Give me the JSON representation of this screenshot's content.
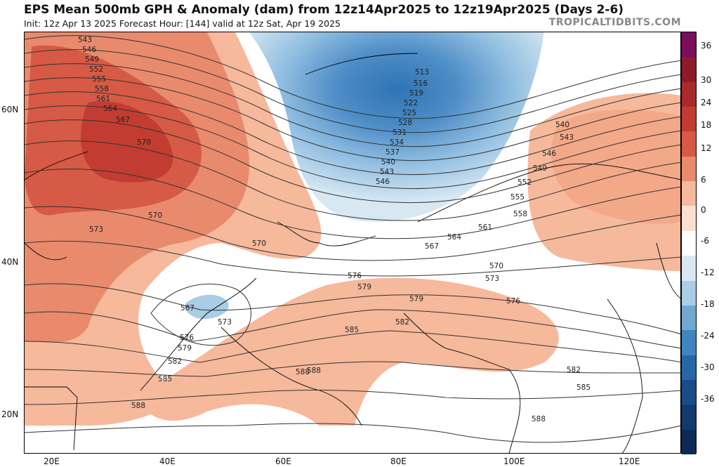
{
  "header": {
    "title": "EPS Mean 500mb GPH & Anomaly (dam) from 12z14Apr2025 to 12z19Apr2025 (Days 2-6)",
    "subtitle": "Init: 12z Apr 13 2025   Forecast Hour: [144]   valid at 12z Sat, Apr 19 2025",
    "brand": "TROPICALTIDBITS.COM"
  },
  "axes": {
    "lat_labels": [
      "60N",
      "40N",
      "20N"
    ],
    "lon_labels": [
      "20E",
      "40E",
      "60E",
      "80E",
      "100E",
      "120E"
    ]
  },
  "colorbar": {
    "ticks": [
      "36",
      "30",
      "24",
      "18",
      "12",
      "6",
      "0",
      "-6",
      "-12",
      "-18",
      "-24",
      "-30",
      "-36"
    ],
    "colors": [
      "#7a0d5c",
      "#8e1b2a",
      "#a82a2a",
      "#c23c32",
      "#d65a45",
      "#e98a6d",
      "#f6b99c",
      "#fbe0d2",
      "#ffffff",
      "#d7e8f3",
      "#a9cde5",
      "#6fa9d2",
      "#3f86c0",
      "#2766a8",
      "#1b4c8a",
      "#133a6e",
      "#0d2a55"
    ]
  },
  "contour_labels": {
    "west_column": [
      "543",
      "546",
      "549",
      "552",
      "555",
      "558",
      "561",
      "564",
      "567",
      "570"
    ],
    "trough": [
      "513",
      "516",
      "519",
      "522",
      "525",
      "528",
      "531",
      "534",
      "537",
      "540",
      "543",
      "546"
    ],
    "east": [
      "540",
      "543",
      "546",
      "549",
      "552",
      "555",
      "558",
      "561",
      "564",
      "567",
      "570",
      "573",
      "576",
      "579",
      "582",
      "585",
      "588"
    ],
    "misc": [
      "573",
      "570",
      "570",
      "567",
      "573",
      "576",
      "579",
      "582",
      "585",
      "588",
      "588",
      "576",
      "579",
      "582",
      "585",
      "588",
      "582",
      "585",
      "588"
    ]
  },
  "icons": [
    "map-contours",
    "coastline",
    "colorbar"
  ]
}
